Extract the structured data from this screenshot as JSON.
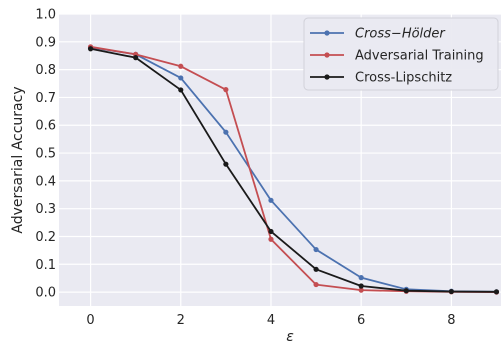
{
  "chart_data": {
    "type": "line",
    "xlabel": "ε",
    "ylabel": "Adversarial Accuracy",
    "xlim": [
      -0.7,
      9.1
    ],
    "ylim": [
      -0.05,
      1.0
    ],
    "grid": true,
    "background": "#eaeaf2",
    "x": [
      0,
      1,
      2,
      3,
      4,
      5,
      6,
      7,
      8,
      9
    ],
    "x_ticks": [
      "0",
      "2",
      "4",
      "6",
      "8"
    ],
    "y_ticks": [
      "0.0",
      "0.1",
      "0.2",
      "0.3",
      "0.4",
      "0.5",
      "0.6",
      "0.7",
      "0.8",
      "0.9",
      "1.0"
    ],
    "legend_position": "top-right",
    "series": [
      {
        "name": "Cross−Hölder",
        "color": "#4c72b0",
        "values": [
          0.88,
          0.855,
          0.77,
          0.575,
          0.33,
          0.153,
          0.052,
          0.01,
          0.003,
          0.001
        ]
      },
      {
        "name": "Adversarial Training",
        "color": "#c44e52",
        "values": [
          0.882,
          0.855,
          0.812,
          0.728,
          0.19,
          0.027,
          0.007,
          0.003,
          0.001,
          0.0
        ]
      },
      {
        "name": "Cross-Lipschitz",
        "color": "#1a1a1a",
        "values": [
          0.875,
          0.843,
          0.727,
          0.46,
          0.218,
          0.082,
          0.022,
          0.005,
          0.002,
          0.001
        ]
      }
    ]
  }
}
